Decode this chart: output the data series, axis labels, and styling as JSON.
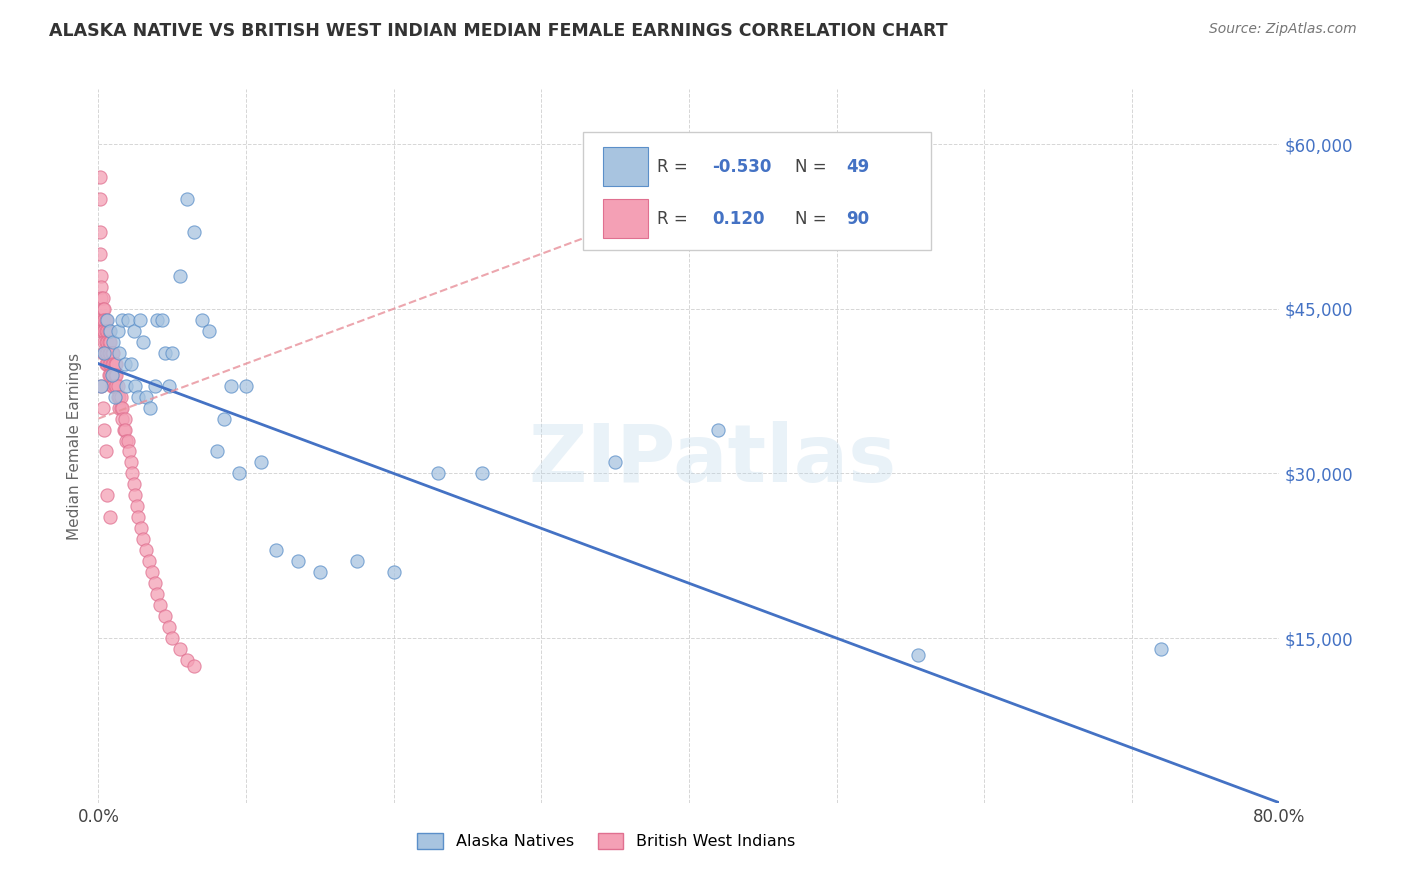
{
  "title": "ALASKA NATIVE VS BRITISH WEST INDIAN MEDIAN FEMALE EARNINGS CORRELATION CHART",
  "source": "Source: ZipAtlas.com",
  "ylabel": "Median Female Earnings",
  "xlim": [
    0,
    0.8
  ],
  "ylim": [
    0,
    65000
  ],
  "yticks": [
    0,
    15000,
    30000,
    45000,
    60000
  ],
  "ytick_labels": [
    "",
    "$15,000",
    "$30,000",
    "$45,000",
    "$60,000"
  ],
  "xticks": [
    0.0,
    0.1,
    0.2,
    0.3,
    0.4,
    0.5,
    0.6,
    0.7,
    0.8
  ],
  "alaska_color": "#a8c4e0",
  "alaska_edge_color": "#5b8fc9",
  "bwi_color": "#f4a0b5",
  "bwi_edge_color": "#e07090",
  "alaska_line_color": "#4472c4",
  "bwi_line_color": "#e8909a",
  "watermark": "ZIPatlas",
  "alaska_line_x0": 0.0,
  "alaska_line_y0": 40000,
  "alaska_line_x1": 0.8,
  "alaska_line_y1": 0,
  "bwi_line_x0": 0.0,
  "bwi_line_y0": 35000,
  "bwi_line_x1": 0.5,
  "bwi_line_y1": 60000,
  "alaska_x": [
    0.002,
    0.004,
    0.006,
    0.008,
    0.009,
    0.01,
    0.011,
    0.013,
    0.014,
    0.016,
    0.018,
    0.019,
    0.02,
    0.022,
    0.024,
    0.025,
    0.027,
    0.028,
    0.03,
    0.032,
    0.035,
    0.038,
    0.04,
    0.043,
    0.045,
    0.048,
    0.05,
    0.055,
    0.06,
    0.065,
    0.07,
    0.075,
    0.08,
    0.085,
    0.09,
    0.095,
    0.1,
    0.11,
    0.12,
    0.135,
    0.15,
    0.175,
    0.2,
    0.23,
    0.26,
    0.35,
    0.42,
    0.555,
    0.72
  ],
  "alaska_y": [
    38000,
    41000,
    44000,
    43000,
    39000,
    42000,
    37000,
    43000,
    41000,
    44000,
    40000,
    38000,
    44000,
    40000,
    43000,
    38000,
    37000,
    44000,
    42000,
    37000,
    36000,
    38000,
    44000,
    44000,
    41000,
    38000,
    41000,
    48000,
    55000,
    52000,
    44000,
    43000,
    32000,
    35000,
    38000,
    30000,
    38000,
    31000,
    23000,
    22000,
    21000,
    22000,
    21000,
    30000,
    30000,
    31000,
    34000,
    13500,
    14000
  ],
  "bwi_x": [
    0.001,
    0.001,
    0.001,
    0.001,
    0.002,
    0.002,
    0.002,
    0.002,
    0.002,
    0.003,
    0.003,
    0.003,
    0.003,
    0.003,
    0.004,
    0.004,
    0.004,
    0.004,
    0.005,
    0.005,
    0.005,
    0.005,
    0.005,
    0.006,
    0.006,
    0.006,
    0.006,
    0.007,
    0.007,
    0.007,
    0.007,
    0.007,
    0.008,
    0.008,
    0.008,
    0.008,
    0.009,
    0.009,
    0.009,
    0.009,
    0.01,
    0.01,
    0.01,
    0.01,
    0.011,
    0.011,
    0.011,
    0.012,
    0.012,
    0.012,
    0.013,
    0.013,
    0.014,
    0.014,
    0.015,
    0.015,
    0.016,
    0.016,
    0.017,
    0.018,
    0.018,
    0.019,
    0.02,
    0.021,
    0.022,
    0.023,
    0.024,
    0.025,
    0.026,
    0.027,
    0.029,
    0.03,
    0.032,
    0.034,
    0.036,
    0.038,
    0.04,
    0.042,
    0.045,
    0.048,
    0.05,
    0.055,
    0.06,
    0.065,
    0.002,
    0.003,
    0.004,
    0.005,
    0.006,
    0.008
  ],
  "bwi_y": [
    57000,
    55000,
    52000,
    50000,
    48000,
    47000,
    46000,
    44000,
    43000,
    46000,
    45000,
    44000,
    43000,
    41000,
    45000,
    44000,
    43000,
    42000,
    44000,
    43000,
    42000,
    41000,
    40000,
    43000,
    42000,
    41000,
    40000,
    43000,
    42000,
    41000,
    40000,
    39000,
    42000,
    41000,
    40000,
    39000,
    41000,
    40000,
    39000,
    38000,
    41000,
    40000,
    39000,
    38000,
    40000,
    39000,
    38000,
    40000,
    39000,
    38000,
    38000,
    37000,
    37000,
    36000,
    37000,
    36000,
    36000,
    35000,
    34000,
    35000,
    34000,
    33000,
    33000,
    32000,
    31000,
    30000,
    29000,
    28000,
    27000,
    26000,
    25000,
    24000,
    23000,
    22000,
    21000,
    20000,
    19000,
    18000,
    17000,
    16000,
    15000,
    14000,
    13000,
    12500,
    38000,
    36000,
    34000,
    32000,
    28000,
    26000
  ]
}
